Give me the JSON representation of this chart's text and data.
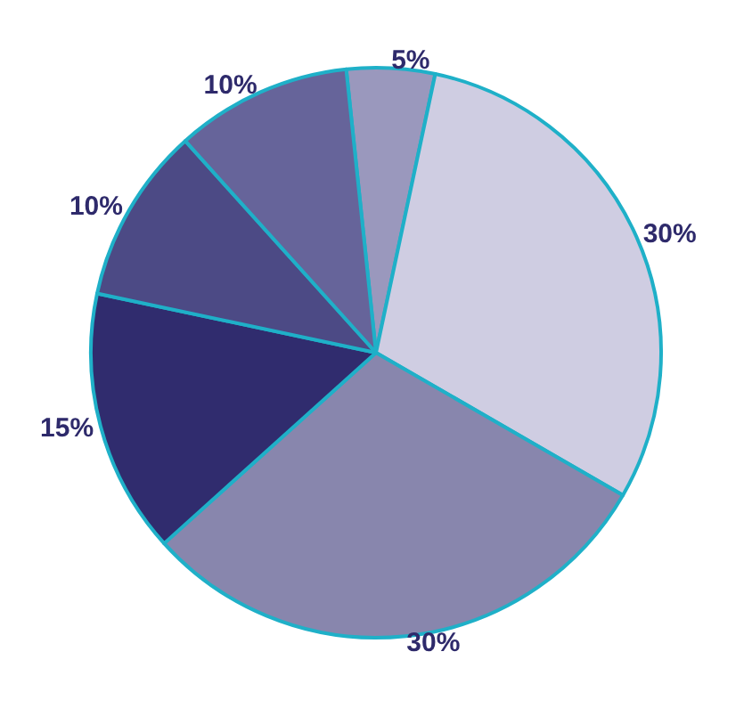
{
  "chart_data": {
    "type": "pie",
    "categories": [
      null,
      null,
      null,
      null,
      null,
      null
    ],
    "values": [
      5,
      30,
      30,
      15,
      10,
      10
    ],
    "value_labels": [
      "5%",
      "30%",
      "30%",
      "15%",
      "10%",
      "10%"
    ],
    "colors": [
      "#9a98bd",
      "#cfcde2",
      "#8886ad",
      "#302c6e",
      "#4c4a85",
      "#66649a"
    ]
  }
}
